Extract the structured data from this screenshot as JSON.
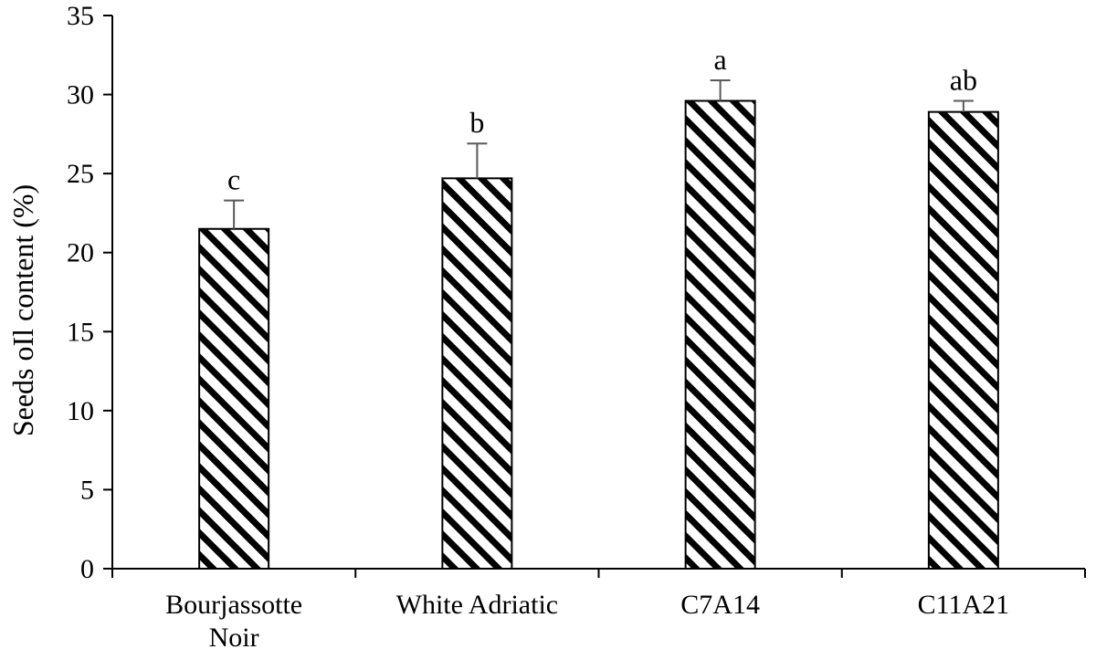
{
  "chart_data": {
    "type": "bar",
    "ylabel": "Seeds oIl content (%)",
    "xlabel": "",
    "ylim": [
      0,
      35
    ],
    "yticks": [
      0,
      5,
      10,
      15,
      20,
      25,
      30,
      35
    ],
    "grid": false,
    "categories": [
      {
        "lines": [
          "Bourjassotte",
          "Noir"
        ]
      },
      {
        "lines": [
          "White Adriatic"
        ]
      },
      {
        "lines": [
          "C7A14"
        ]
      },
      {
        "lines": [
          "C11A21"
        ]
      }
    ],
    "values": [
      21.5,
      24.7,
      29.6,
      28.9
    ],
    "errors": [
      1.8,
      2.2,
      1.3,
      0.7
    ],
    "significance": [
      "c",
      "b",
      "a",
      "ab"
    ],
    "bar_fill": "diagonal hatch (black on white)"
  }
}
